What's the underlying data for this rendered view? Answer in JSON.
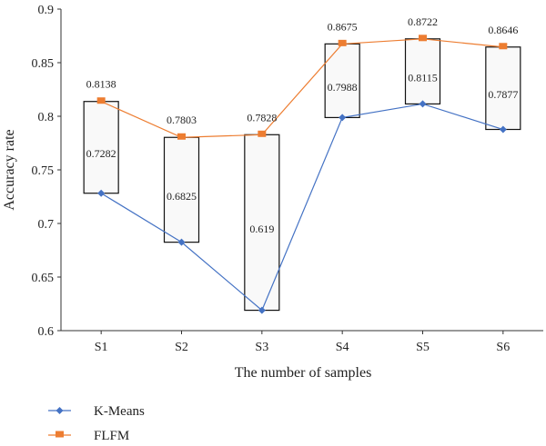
{
  "chart_data": {
    "type": "line",
    "title": "",
    "xlabel": "The number of samples",
    "ylabel": "Accuracy rate",
    "categories": [
      "S1",
      "S2",
      "S3",
      "S4",
      "S5",
      "S6"
    ],
    "ylim": [
      0.6,
      0.9
    ],
    "yticks": [
      "0.6",
      "0.65",
      "0.7",
      "0.75",
      "0.8",
      "0.85",
      "0.9"
    ],
    "grid": false,
    "legend_position": "bottom-left",
    "range_boxes": true,
    "series": [
      {
        "name": "K-Means",
        "values": [
          0.7282,
          0.6825,
          0.619,
          0.7988,
          0.8115,
          0.7877
        ],
        "labels": [
          "0.7282",
          "0.6825",
          "0.619",
          "0.7988",
          "0.8115",
          "0.7877"
        ],
        "color": "#4472c4",
        "marker": "diamond"
      },
      {
        "name": "FLFM",
        "values": [
          0.8138,
          0.7803,
          0.7828,
          0.8675,
          0.8722,
          0.8646
        ],
        "labels": [
          "0.8138",
          "0.7803",
          "0.7828",
          "0.8675",
          "0.8722",
          "0.8646"
        ],
        "color": "#ed7d31",
        "marker": "square"
      }
    ]
  }
}
